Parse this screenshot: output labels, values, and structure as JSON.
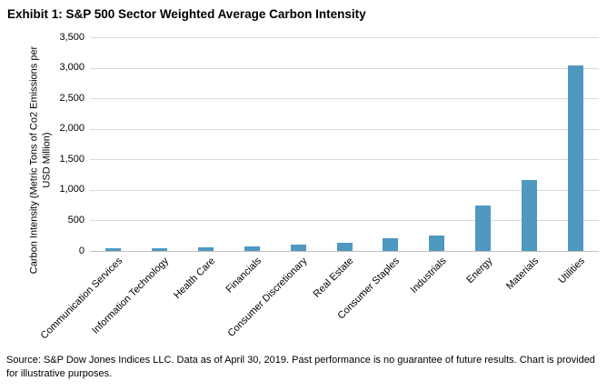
{
  "title": "Exhibit 1: S&P 500 Sector Weighted Average Carbon Intensity",
  "source": "Source: S&P Dow Jones Indices LLC. Data as of April 30, 2019. Past performance is no guarantee of future results. Chart is provided for illustrative purposes.",
  "chart_data": {
    "type": "bar",
    "title": "Exhibit 1: S&P 500 Sector Weighted Average Carbon Intensity",
    "categories": [
      "Communication Services",
      "Information Technology",
      "Health Care",
      "Financials",
      "Consumer Discretionary",
      "Real Estate",
      "Consumer Staples",
      "Industrials",
      "Energy",
      "Materials",
      "Utilities"
    ],
    "values": [
      40,
      45,
      65,
      80,
      100,
      130,
      215,
      250,
      750,
      1165,
      3040
    ],
    "xlabel": "",
    "ylabel": "Carbon Intensity (Metric Tons of Co2 Emissions per\nUSD Million)",
    "ylim": [
      0,
      3500
    ],
    "ytick_step": 500,
    "ytick_labels": [
      "0",
      "500",
      "1,000",
      "1,500",
      "2,000",
      "2,500",
      "3,000",
      "3,500"
    ],
    "grid": "horizontal",
    "legend": "none",
    "x_label_rotation_deg": 45,
    "bar_color": "#4f99c1",
    "gridline_color": "#d9d9d9",
    "axisline_color": "#bfbfbf",
    "background_color": "#ffffff"
  }
}
